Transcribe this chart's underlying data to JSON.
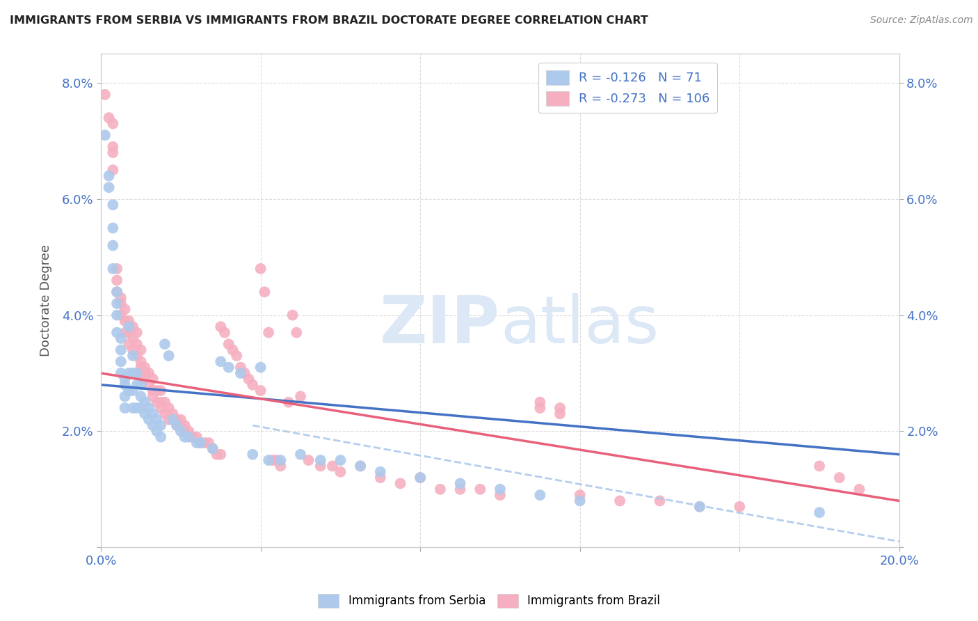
{
  "title": "IMMIGRANTS FROM SERBIA VS IMMIGRANTS FROM BRAZIL DOCTORATE DEGREE CORRELATION CHART",
  "source": "Source: ZipAtlas.com",
  "ylabel": "Doctorate Degree",
  "xlim": [
    0.0,
    0.2
  ],
  "ylim": [
    0.0,
    0.085
  ],
  "serbia_color": "#adc9eb",
  "brazil_color": "#f5afc0",
  "serbia_R": -0.126,
  "serbia_N": 71,
  "brazil_R": -0.273,
  "brazil_N": 106,
  "serbia_line_color": "#4472c4",
  "brazil_line_color": "#e8607a",
  "dashed_line_color": "#adc9eb",
  "background_color": "#ffffff",
  "grid_color": "#dddddd",
  "tick_color": "#4472c4",
  "title_color": "#222222",
  "source_color": "#888888",
  "ylabel_color": "#555555",
  "watermark_color": "#dce8f5",
  "legend_text_color": "#4472c4",
  "serbia_x": [
    0.001,
    0.002,
    0.002,
    0.003,
    0.003,
    0.003,
    0.003,
    0.004,
    0.004,
    0.004,
    0.004,
    0.005,
    0.005,
    0.005,
    0.005,
    0.006,
    0.006,
    0.006,
    0.006,
    0.007,
    0.007,
    0.007,
    0.008,
    0.008,
    0.008,
    0.008,
    0.009,
    0.009,
    0.009,
    0.01,
    0.01,
    0.01,
    0.011,
    0.011,
    0.012,
    0.012,
    0.013,
    0.013,
    0.014,
    0.014,
    0.015,
    0.015,
    0.016,
    0.017,
    0.018,
    0.019,
    0.02,
    0.021,
    0.022,
    0.024,
    0.025,
    0.028,
    0.03,
    0.032,
    0.035,
    0.038,
    0.04,
    0.042,
    0.045,
    0.05,
    0.055,
    0.06,
    0.065,
    0.07,
    0.08,
    0.09,
    0.1,
    0.11,
    0.12,
    0.15,
    0.18
  ],
  "serbia_y": [
    0.071,
    0.064,
    0.062,
    0.059,
    0.055,
    0.052,
    0.048,
    0.044,
    0.042,
    0.04,
    0.037,
    0.036,
    0.034,
    0.032,
    0.03,
    0.029,
    0.028,
    0.026,
    0.024,
    0.038,
    0.03,
    0.027,
    0.033,
    0.03,
    0.027,
    0.024,
    0.03,
    0.028,
    0.024,
    0.028,
    0.026,
    0.024,
    0.025,
    0.023,
    0.024,
    0.022,
    0.023,
    0.021,
    0.022,
    0.02,
    0.021,
    0.019,
    0.035,
    0.033,
    0.022,
    0.021,
    0.02,
    0.019,
    0.019,
    0.018,
    0.018,
    0.017,
    0.032,
    0.031,
    0.03,
    0.016,
    0.031,
    0.015,
    0.015,
    0.016,
    0.015,
    0.015,
    0.014,
    0.013,
    0.012,
    0.011,
    0.01,
    0.009,
    0.008,
    0.007,
    0.006
  ],
  "brazil_x": [
    0.001,
    0.002,
    0.003,
    0.003,
    0.004,
    0.004,
    0.004,
    0.005,
    0.005,
    0.005,
    0.006,
    0.006,
    0.006,
    0.007,
    0.007,
    0.007,
    0.008,
    0.008,
    0.008,
    0.009,
    0.009,
    0.009,
    0.01,
    0.01,
    0.01,
    0.01,
    0.011,
    0.011,
    0.011,
    0.012,
    0.012,
    0.013,
    0.013,
    0.013,
    0.014,
    0.014,
    0.015,
    0.015,
    0.015,
    0.016,
    0.016,
    0.017,
    0.017,
    0.018,
    0.018,
    0.019,
    0.019,
    0.02,
    0.02,
    0.021,
    0.021,
    0.022,
    0.023,
    0.024,
    0.025,
    0.026,
    0.027,
    0.028,
    0.029,
    0.03,
    0.03,
    0.031,
    0.032,
    0.033,
    0.034,
    0.035,
    0.036,
    0.037,
    0.038,
    0.04,
    0.042,
    0.043,
    0.044,
    0.045,
    0.047,
    0.05,
    0.052,
    0.055,
    0.058,
    0.06,
    0.065,
    0.07,
    0.075,
    0.08,
    0.085,
    0.09,
    0.095,
    0.1,
    0.11,
    0.115,
    0.12,
    0.13,
    0.14,
    0.15,
    0.16,
    0.003,
    0.003,
    0.04,
    0.041,
    0.048,
    0.049,
    0.11,
    0.115,
    0.18,
    0.185,
    0.19
  ],
  "brazil_y": [
    0.078,
    0.074,
    0.069,
    0.065,
    0.048,
    0.046,
    0.044,
    0.043,
    0.042,
    0.04,
    0.041,
    0.039,
    0.037,
    0.039,
    0.037,
    0.035,
    0.038,
    0.036,
    0.034,
    0.037,
    0.035,
    0.033,
    0.034,
    0.032,
    0.031,
    0.03,
    0.031,
    0.03,
    0.029,
    0.03,
    0.028,
    0.029,
    0.027,
    0.026,
    0.027,
    0.025,
    0.027,
    0.025,
    0.024,
    0.025,
    0.023,
    0.024,
    0.022,
    0.023,
    0.022,
    0.022,
    0.021,
    0.022,
    0.021,
    0.021,
    0.02,
    0.02,
    0.019,
    0.019,
    0.018,
    0.018,
    0.018,
    0.017,
    0.016,
    0.016,
    0.038,
    0.037,
    0.035,
    0.034,
    0.033,
    0.031,
    0.03,
    0.029,
    0.028,
    0.027,
    0.037,
    0.015,
    0.015,
    0.014,
    0.025,
    0.026,
    0.015,
    0.014,
    0.014,
    0.013,
    0.014,
    0.012,
    0.011,
    0.012,
    0.01,
    0.01,
    0.01,
    0.009,
    0.024,
    0.024,
    0.009,
    0.008,
    0.008,
    0.007,
    0.007,
    0.073,
    0.068,
    0.048,
    0.044,
    0.04,
    0.037,
    0.025,
    0.023,
    0.014,
    0.012,
    0.01
  ],
  "serbia_trendline_x": [
    0.0,
    0.2
  ],
  "serbia_trendline_y": [
    0.028,
    0.016
  ],
  "brazil_trendline_x": [
    0.0,
    0.2
  ],
  "brazil_trendline_y": [
    0.03,
    0.008
  ],
  "dashed_trendline_x": [
    0.038,
    0.2
  ],
  "dashed_trendline_y": [
    0.021,
    0.001
  ]
}
